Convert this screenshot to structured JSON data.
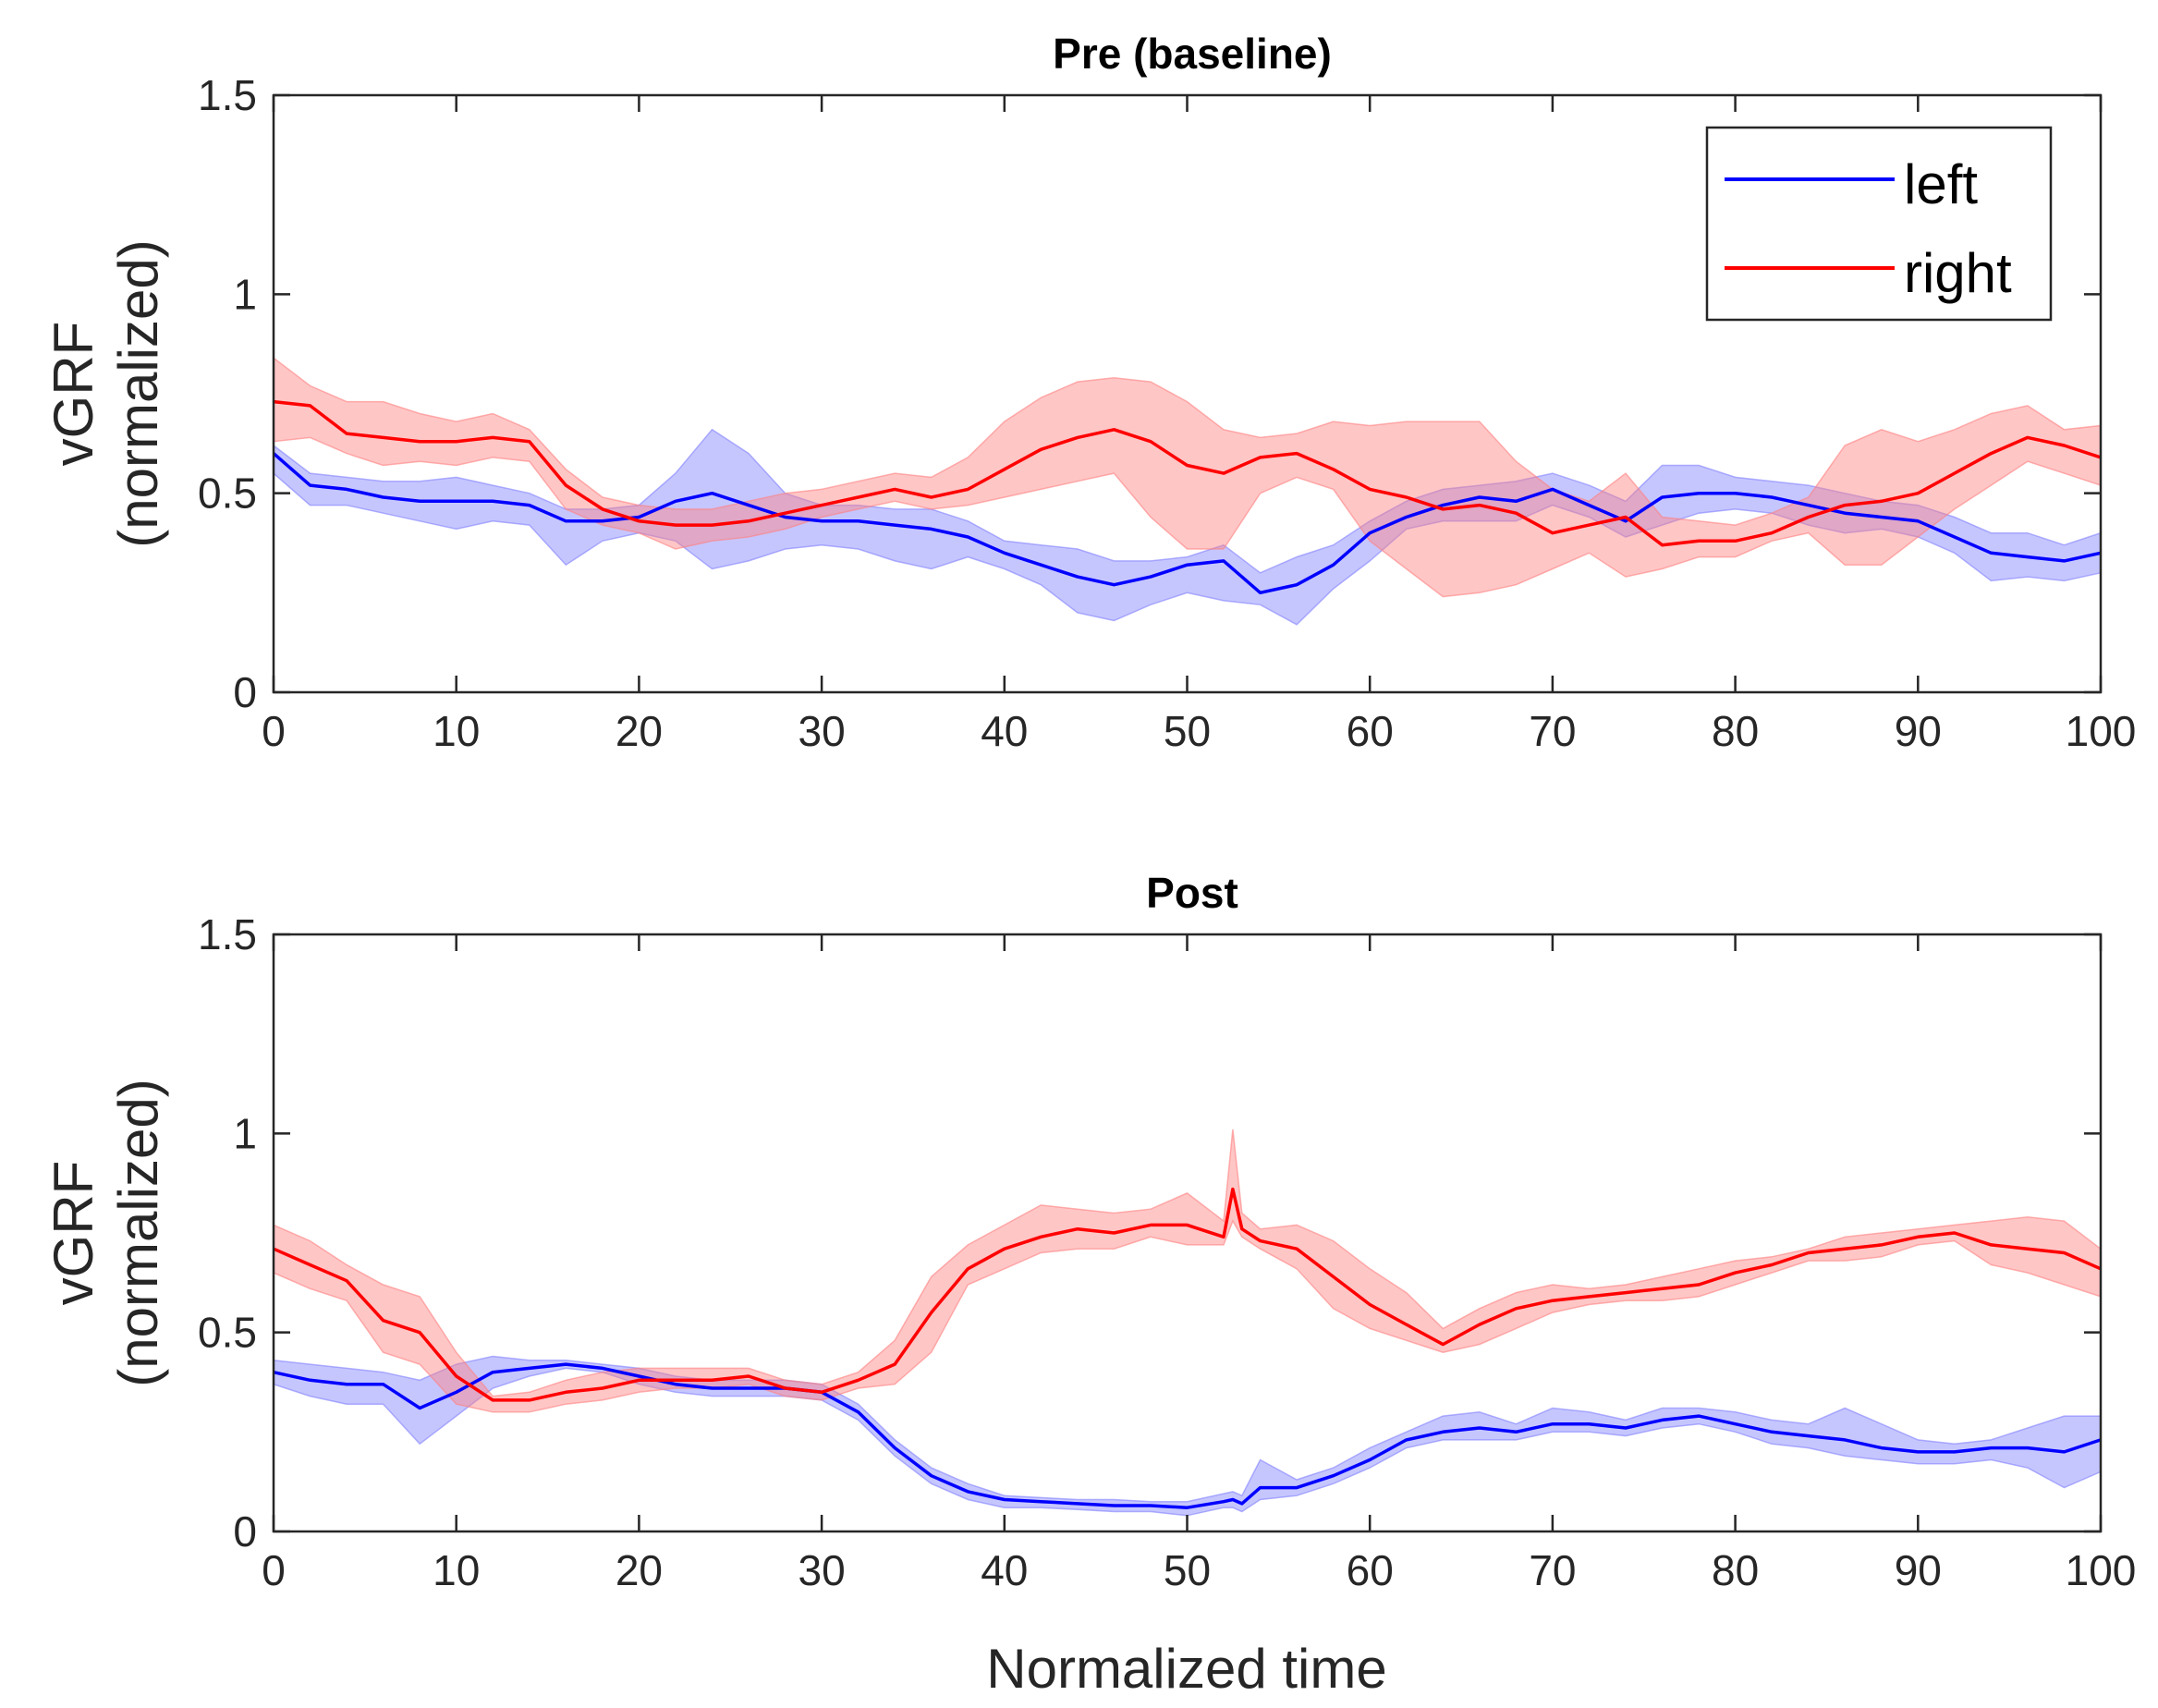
{
  "figure": {
    "xlabel": "Normalized time"
  },
  "legend": {
    "entries": [
      {
        "label": "left",
        "color": "#0000ff"
      },
      {
        "label": "right",
        "color": "#ff0000"
      }
    ]
  },
  "colors": {
    "left_line": "#0000ff",
    "left_band": "#8080ff",
    "right_line": "#ff0000",
    "right_band": "#ff8080"
  },
  "chart_data": [
    {
      "type": "line",
      "title": "Pre (baseline)",
      "xlabel": "",
      "ylabel_line1": "vGRF",
      "ylabel_line2": "(normalized)",
      "xlim": [
        0,
        100
      ],
      "ylim": [
        0,
        1.5
      ],
      "xticks": [
        "0",
        "10",
        "20",
        "30",
        "40",
        "50",
        "60",
        "70",
        "80",
        "90",
        "100"
      ],
      "yticks": [
        "0",
        "0.5",
        "1",
        "1.5"
      ],
      "x": [
        0,
        2,
        4,
        6,
        8,
        10,
        12,
        14,
        16,
        18,
        20,
        22,
        24,
        26,
        28,
        30,
        32,
        34,
        36,
        38,
        40,
        42,
        44,
        46,
        48,
        50,
        52,
        54,
        56,
        58,
        60,
        62,
        64,
        66,
        68,
        70,
        72,
        74,
        76,
        78,
        80,
        82,
        84,
        86,
        88,
        90,
        92,
        94,
        96,
        98,
        100
      ],
      "series": [
        {
          "name": "left",
          "mean": [
            0.6,
            0.52,
            0.51,
            0.49,
            0.48,
            0.48,
            0.48,
            0.47,
            0.43,
            0.43,
            0.44,
            0.48,
            0.5,
            0.47,
            0.44,
            0.43,
            0.43,
            0.42,
            0.41,
            0.39,
            0.35,
            0.32,
            0.29,
            0.27,
            0.29,
            0.32,
            0.33,
            0.25,
            0.27,
            0.32,
            0.4,
            0.44,
            0.47,
            0.49,
            0.48,
            0.51,
            0.47,
            0.43,
            0.49,
            0.5,
            0.5,
            0.49,
            0.47,
            0.45,
            0.44,
            0.43,
            0.39,
            0.35,
            0.34,
            0.33,
            0.35
          ],
          "upper": [
            0.62,
            0.55,
            0.54,
            0.53,
            0.53,
            0.54,
            0.52,
            0.5,
            0.46,
            0.46,
            0.47,
            0.55,
            0.66,
            0.6,
            0.5,
            0.47,
            0.47,
            0.46,
            0.46,
            0.43,
            0.38,
            0.37,
            0.36,
            0.33,
            0.33,
            0.34,
            0.37,
            0.3,
            0.34,
            0.37,
            0.43,
            0.48,
            0.51,
            0.52,
            0.53,
            0.55,
            0.52,
            0.48,
            0.57,
            0.57,
            0.54,
            0.53,
            0.52,
            0.5,
            0.48,
            0.47,
            0.44,
            0.4,
            0.4,
            0.37,
            0.4
          ],
          "lower": [
            0.55,
            0.47,
            0.47,
            0.45,
            0.43,
            0.41,
            0.43,
            0.42,
            0.32,
            0.38,
            0.4,
            0.38,
            0.31,
            0.33,
            0.36,
            0.37,
            0.36,
            0.33,
            0.31,
            0.34,
            0.31,
            0.27,
            0.2,
            0.18,
            0.22,
            0.25,
            0.23,
            0.22,
            0.17,
            0.26,
            0.33,
            0.41,
            0.43,
            0.43,
            0.43,
            0.47,
            0.44,
            0.39,
            0.42,
            0.45,
            0.46,
            0.45,
            0.42,
            0.4,
            0.41,
            0.39,
            0.35,
            0.28,
            0.29,
            0.28,
            0.3
          ]
        },
        {
          "name": "right",
          "mean": [
            0.73,
            0.72,
            0.65,
            0.64,
            0.63,
            0.63,
            0.64,
            0.63,
            0.52,
            0.46,
            0.43,
            0.42,
            0.42,
            0.43,
            0.45,
            0.47,
            0.49,
            0.51,
            0.49,
            0.51,
            0.56,
            0.61,
            0.64,
            0.66,
            0.63,
            0.57,
            0.55,
            0.59,
            0.6,
            0.56,
            0.51,
            0.49,
            0.46,
            0.47,
            0.45,
            0.4,
            0.42,
            0.44,
            0.37,
            0.38,
            0.38,
            0.4,
            0.44,
            0.47,
            0.48,
            0.5,
            0.55,
            0.6,
            0.64,
            0.62,
            0.59
          ],
          "upper": [
            0.84,
            0.77,
            0.73,
            0.73,
            0.7,
            0.68,
            0.7,
            0.66,
            0.56,
            0.49,
            0.47,
            0.46,
            0.46,
            0.48,
            0.5,
            0.51,
            0.53,
            0.55,
            0.54,
            0.59,
            0.68,
            0.74,
            0.78,
            0.79,
            0.78,
            0.73,
            0.66,
            0.64,
            0.65,
            0.68,
            0.67,
            0.68,
            0.68,
            0.68,
            0.58,
            0.51,
            0.48,
            0.55,
            0.44,
            0.43,
            0.42,
            0.45,
            0.49,
            0.62,
            0.66,
            0.63,
            0.66,
            0.7,
            0.72,
            0.66,
            0.67
          ],
          "lower": [
            0.63,
            0.64,
            0.6,
            0.57,
            0.58,
            0.57,
            0.59,
            0.58,
            0.46,
            0.42,
            0.4,
            0.36,
            0.38,
            0.39,
            0.41,
            0.44,
            0.46,
            0.48,
            0.46,
            0.47,
            0.49,
            0.51,
            0.53,
            0.55,
            0.44,
            0.36,
            0.36,
            0.5,
            0.54,
            0.51,
            0.38,
            0.31,
            0.24,
            0.25,
            0.27,
            0.31,
            0.35,
            0.29,
            0.31,
            0.34,
            0.34,
            0.38,
            0.4,
            0.32,
            0.32,
            0.39,
            0.46,
            0.52,
            0.58,
            0.55,
            0.52
          ]
        }
      ]
    },
    {
      "type": "line",
      "title": "Post",
      "xlabel": "Normalized time",
      "ylabel_line1": "vGRF",
      "ylabel_line2": "(normalized)",
      "xlim": [
        0,
        100
      ],
      "ylim": [
        0,
        1.5
      ],
      "xticks": [
        "0",
        "10",
        "20",
        "30",
        "40",
        "50",
        "60",
        "70",
        "80",
        "90",
        "100"
      ],
      "yticks": [
        "0",
        "0.5",
        "1",
        "1.5"
      ],
      "x": [
        0,
        2,
        4,
        6,
        8,
        10,
        12,
        14,
        16,
        18,
        20,
        22,
        24,
        26,
        28,
        30,
        32,
        34,
        36,
        38,
        40,
        42,
        44,
        46,
        48,
        50,
        52,
        52.5,
        53,
        54,
        56,
        58,
        60,
        62,
        64,
        66,
        68,
        70,
        72,
        74,
        76,
        78,
        80,
        82,
        84,
        86,
        88,
        90,
        92,
        94,
        96,
        98,
        100
      ],
      "series": [
        {
          "name": "left",
          "mean": [
            0.4,
            0.38,
            0.37,
            0.37,
            0.31,
            0.35,
            0.4,
            0.41,
            0.42,
            0.41,
            0.39,
            0.37,
            0.36,
            0.36,
            0.36,
            0.35,
            0.3,
            0.21,
            0.14,
            0.1,
            0.08,
            0.075,
            0.07,
            0.065,
            0.065,
            0.06,
            0.075,
            0.08,
            0.07,
            0.11,
            0.11,
            0.14,
            0.18,
            0.23,
            0.25,
            0.26,
            0.25,
            0.27,
            0.27,
            0.26,
            0.28,
            0.29,
            0.27,
            0.25,
            0.24,
            0.23,
            0.21,
            0.2,
            0.2,
            0.21,
            0.21,
            0.2,
            0.23
          ],
          "upper": [
            0.43,
            0.42,
            0.41,
            0.4,
            0.38,
            0.42,
            0.44,
            0.43,
            0.43,
            0.42,
            0.41,
            0.39,
            0.38,
            0.38,
            0.38,
            0.37,
            0.32,
            0.23,
            0.16,
            0.12,
            0.09,
            0.085,
            0.08,
            0.08,
            0.075,
            0.075,
            0.095,
            0.1,
            0.09,
            0.18,
            0.13,
            0.16,
            0.21,
            0.25,
            0.29,
            0.3,
            0.27,
            0.31,
            0.3,
            0.28,
            0.31,
            0.31,
            0.3,
            0.28,
            0.27,
            0.31,
            0.27,
            0.23,
            0.22,
            0.23,
            0.26,
            0.29,
            0.29
          ],
          "lower": [
            0.37,
            0.34,
            0.32,
            0.32,
            0.22,
            0.29,
            0.36,
            0.39,
            0.41,
            0.4,
            0.37,
            0.35,
            0.34,
            0.34,
            0.34,
            0.33,
            0.28,
            0.19,
            0.12,
            0.08,
            0.06,
            0.06,
            0.055,
            0.05,
            0.05,
            0.04,
            0.06,
            0.06,
            0.05,
            0.08,
            0.09,
            0.12,
            0.16,
            0.21,
            0.23,
            0.23,
            0.23,
            0.25,
            0.25,
            0.24,
            0.26,
            0.27,
            0.25,
            0.22,
            0.21,
            0.19,
            0.18,
            0.17,
            0.17,
            0.18,
            0.16,
            0.11,
            0.15
          ]
        },
        {
          "name": "right",
          "mean": [
            0.71,
            0.67,
            0.63,
            0.53,
            0.5,
            0.39,
            0.33,
            0.33,
            0.35,
            0.36,
            0.38,
            0.38,
            0.38,
            0.39,
            0.36,
            0.35,
            0.38,
            0.42,
            0.55,
            0.66,
            0.71,
            0.74,
            0.76,
            0.75,
            0.77,
            0.77,
            0.74,
            0.86,
            0.76,
            0.73,
            0.71,
            0.64,
            0.57,
            0.52,
            0.47,
            0.52,
            0.56,
            0.58,
            0.59,
            0.6,
            0.61,
            0.62,
            0.65,
            0.67,
            0.7,
            0.71,
            0.72,
            0.74,
            0.75,
            0.72,
            0.71,
            0.7,
            0.66
          ],
          "upper": [
            0.77,
            0.73,
            0.67,
            0.62,
            0.59,
            0.45,
            0.34,
            0.35,
            0.38,
            0.4,
            0.41,
            0.41,
            0.41,
            0.41,
            0.38,
            0.37,
            0.4,
            0.48,
            0.64,
            0.72,
            0.77,
            0.82,
            0.81,
            0.8,
            0.81,
            0.85,
            0.78,
            1.01,
            0.8,
            0.76,
            0.77,
            0.73,
            0.66,
            0.6,
            0.51,
            0.56,
            0.6,
            0.62,
            0.61,
            0.62,
            0.64,
            0.66,
            0.68,
            0.69,
            0.71,
            0.74,
            0.75,
            0.76,
            0.77,
            0.78,
            0.79,
            0.78,
            0.71
          ],
          "lower": [
            0.65,
            0.61,
            0.58,
            0.45,
            0.42,
            0.32,
            0.3,
            0.3,
            0.32,
            0.33,
            0.35,
            0.36,
            0.36,
            0.37,
            0.34,
            0.33,
            0.36,
            0.37,
            0.45,
            0.62,
            0.66,
            0.7,
            0.71,
            0.71,
            0.74,
            0.72,
            0.72,
            0.78,
            0.74,
            0.71,
            0.66,
            0.56,
            0.51,
            0.48,
            0.45,
            0.47,
            0.51,
            0.55,
            0.57,
            0.58,
            0.58,
            0.59,
            0.62,
            0.65,
            0.68,
            0.68,
            0.69,
            0.72,
            0.73,
            0.67,
            0.65,
            0.62,
            0.59
          ]
        }
      ]
    }
  ]
}
